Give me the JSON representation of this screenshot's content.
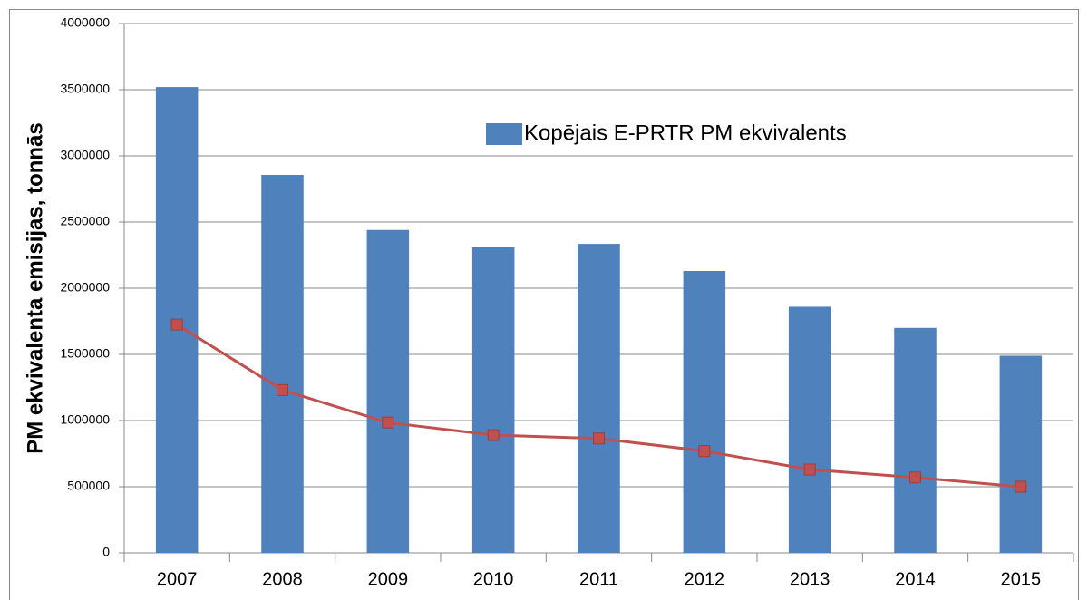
{
  "chart_data": {
    "type": "bar",
    "y_label": "PM ekvivalenta emisijas, tonnās",
    "categories": [
      "2007",
      "2008",
      "2009",
      "2010",
      "2011",
      "2012",
      "2013",
      "2014",
      "2015"
    ],
    "series": [
      {
        "name": "Kopējais E-PRTR PM ekvivalents",
        "type": "bar",
        "color": "#4f81bd",
        "values": [
          3520000,
          2856000,
          2440000,
          2310000,
          2335000,
          2130000,
          1860000,
          1700000,
          1490000
        ]
      },
      {
        "type": "line",
        "color": "#c0504d",
        "values": [
          1725000,
          1230000,
          985000,
          890000,
          865000,
          770000,
          630000,
          570000,
          500000
        ]
      }
    ],
    "ylim": [
      0,
      4000000
    ],
    "yticks": [
      0,
      500000,
      1000000,
      1500000,
      2000000,
      2500000,
      3000000,
      3500000,
      4000000
    ],
    "grid": true,
    "legend": "upper right"
  }
}
